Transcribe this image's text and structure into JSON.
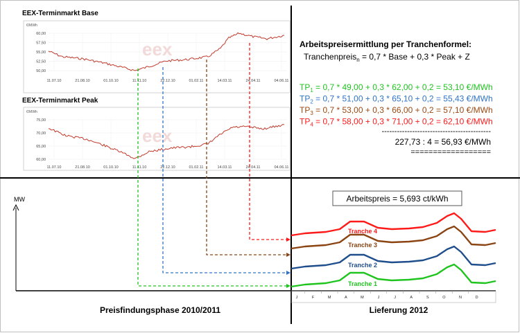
{
  "charts": {
    "base": {
      "title": "EEX-Terminmarkt Base",
      "unit": "€/MWh",
      "yticks": [
        "60,00",
        "57,50",
        "55,00",
        "52,50",
        "50,00"
      ],
      "xticks": [
        "11.07.10",
        "21.08.10",
        "01.10.10",
        "11.11.10",
        "22.12.10",
        "01.02.11",
        "14.03.11",
        "24.04.11",
        "04.06.11"
      ],
      "watermark": "eex"
    },
    "peak": {
      "title": "EEX-Terminmarkt Peak",
      "unit": "€/MWh",
      "yticks": [
        "75,00",
        "70,00",
        "65,00",
        "60,00"
      ],
      "xticks": [
        "11.07.10",
        "21.08.10",
        "01.10.10",
        "11.11.10",
        "22.12.10",
        "01.02.11",
        "14.03.11",
        "24.04.11",
        "04.06.11"
      ],
      "watermark": "eex"
    }
  },
  "formula": {
    "heading": "Arbeitspreisermittlung  per Tranchenformel:",
    "text_before": "Tranchenpreis",
    "subscript": "n",
    "text_after": " =  0,7 * Base  +  0,3 * Peak  + Z",
    "lines": [
      {
        "prefix": "TP",
        "sub": "1",
        "rest": " = 0,7 * 49,00 + 0,3 * 62,00 + 0,2 = 53,10 €/MWh",
        "color": "#1fc41f"
      },
      {
        "prefix": "TP",
        "sub": "2",
        "rest": " = 0,7 * 51,00 + 0,3 * 65,10 + 0,2 = 55,43 €/MWh",
        "color": "#2f74c8"
      },
      {
        "prefix": "TP",
        "sub": "3",
        "rest": " = 0,7 * 53,00 + 0,3 * 66,00 + 0,2 = 57,10 €/MWh",
        "color": "#9b4a12"
      },
      {
        "prefix": "TP",
        "sub": "4",
        "rest": " = 0,7 * 58,00 + 0,3 * 71,00 + 0,2 = 62,10 €/MWh",
        "color": "#ff1a1a"
      }
    ],
    "dash_line": "-------------------------------------------",
    "sum_line": "227,73 : 4 = 56,93 €/MWh",
    "eq_line": "=================="
  },
  "bottom": {
    "axis_label": "MW",
    "arbeitspreis": "Arbeitspreis = 5,693 ct/kWh",
    "tranches": [
      {
        "label": "Tranche 1",
        "color": "#1fc41f"
      },
      {
        "label": "Tranche  2",
        "color": "#1f4e8c"
      },
      {
        "label": "Tranche 3",
        "color": "#8b4513"
      },
      {
        "label": "Tranche 4",
        "color": "#ff1a1a"
      }
    ],
    "months": [
      "J",
      "F",
      "M",
      "A",
      "M",
      "J",
      "J",
      "A",
      "S",
      "O",
      "N",
      "D"
    ],
    "phase_left": "Preisfindungsphase 2010/2011",
    "phase_right": "Lieferung 2012"
  },
  "colors": {
    "green": "#1fc41f",
    "blue": "#2f74c8",
    "brown": "#8b4513",
    "red": "#ff1a1a",
    "line": "#c0392b"
  }
}
